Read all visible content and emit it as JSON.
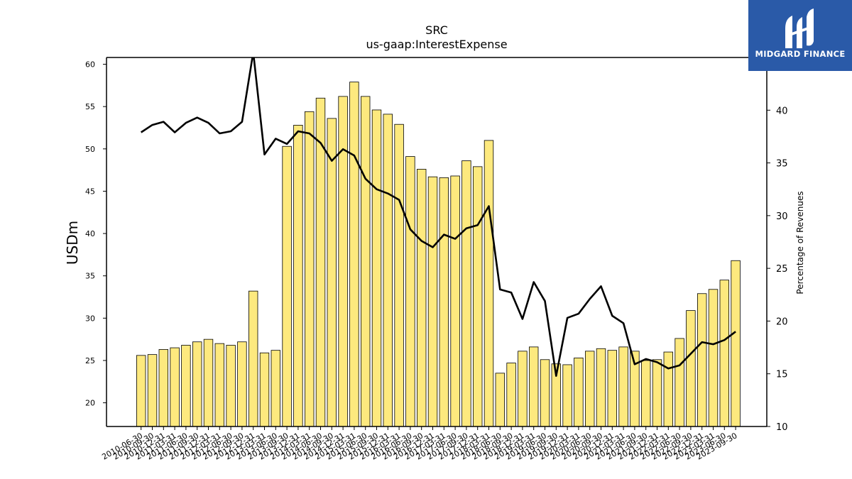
{
  "logo": {
    "text": "MIDGARD FINANCE"
  },
  "colors": {
    "bar_fill": "#fde97e",
    "bar_stroke": "#000000",
    "line": "#000000",
    "logo_bg": "#2a5aa8"
  },
  "chart_data": {
    "type": "bar",
    "title": "SRC",
    "subtitle": "us-gaap:InterestExpense",
    "ylabel": "USDm",
    "y2label": "Percentage of Revenues",
    "ylim": [
      17.2,
      60.8
    ],
    "y2lim": [
      10,
      45
    ],
    "yticks": [
      20,
      25,
      30,
      35,
      40,
      45,
      50,
      55,
      60
    ],
    "y2ticks": [
      10,
      15,
      20,
      25,
      30,
      35,
      40
    ],
    "grid": false,
    "categories": [
      "2010-06-30",
      "2010-09-30",
      "2010-12-31",
      "2011-03-31",
      "2011-06-30",
      "2011-09-30",
      "2011-12-31",
      "2012-03-31",
      "2012-06-30",
      "2012-09-30",
      "2012-12-31",
      "2013-03-31",
      "2013-06-30",
      "2013-09-30",
      "2013-12-31",
      "2014-03-31",
      "2014-06-30",
      "2014-09-30",
      "2014-12-31",
      "2015-03-31",
      "2015-06-30",
      "2015-09-30",
      "2015-12-31",
      "2016-03-31",
      "2016-06-30",
      "2016-09-30",
      "2016-12-31",
      "2017-03-31",
      "2017-06-30",
      "2017-09-30",
      "2017-12-31",
      "2018-03-31",
      "2018-06-30",
      "2018-09-30",
      "2018-12-31",
      "2019-03-31",
      "2019-06-30",
      "2019-09-30",
      "2019-12-31",
      "2020-03-31",
      "2020-06-30",
      "2020-09-30",
      "2020-12-31",
      "2021-03-31",
      "2021-06-30",
      "2021-09-30",
      "2021-12-31",
      "2022-03-31",
      "2022-06-30",
      "2022-09-30",
      "2022-12-31",
      "2023-03-31",
      "2023-06-30",
      "2023-09-30"
    ],
    "series": [
      {
        "type": "bar",
        "axis": "left",
        "values": [
          25.6,
          25.7,
          26.3,
          26.5,
          26.8,
          27.2,
          27.5,
          27.0,
          26.8,
          27.2,
          33.2,
          25.9,
          26.2,
          50.3,
          52.8,
          54.4,
          56.0,
          53.6,
          56.2,
          57.9,
          56.2,
          54.6,
          54.1,
          52.9,
          49.1,
          47.6,
          46.7,
          46.6,
          46.8,
          48.6,
          47.9,
          51.0,
          23.5,
          24.7,
          26.1,
          26.6,
          25.1,
          24.6,
          24.5,
          25.3,
          26.1,
          26.4,
          26.2,
          26.6,
          26.1,
          25.0,
          25.1,
          26.0,
          27.6,
          30.9,
          32.9,
          33.4,
          34.5,
          36.8
        ]
      },
      {
        "type": "line",
        "axis": "right",
        "values": [
          37.9,
          38.6,
          38.9,
          37.9,
          38.8,
          39.3,
          38.8,
          37.8,
          38.0,
          38.9,
          45.5,
          35.8,
          37.3,
          36.8,
          38.0,
          37.8,
          36.9,
          35.2,
          36.3,
          35.7,
          33.5,
          32.5,
          32.1,
          31.5,
          28.7,
          27.6,
          27.0,
          28.2,
          27.8,
          28.8,
          29.1,
          30.9,
          23.0,
          22.7,
          20.2,
          23.7,
          21.9,
          14.8,
          20.3,
          20.7,
          22.1,
          23.3,
          20.5,
          19.8,
          15.9,
          16.4,
          16.1,
          15.5,
          15.8,
          16.9,
          18.0,
          17.8,
          18.2,
          19.0
        ]
      }
    ]
  }
}
